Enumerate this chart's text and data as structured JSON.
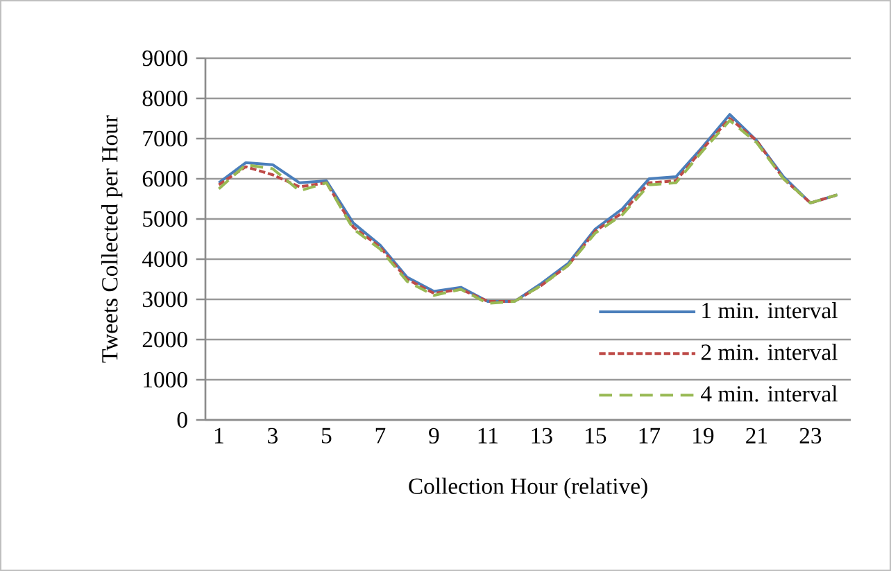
{
  "chart_data": {
    "type": "line",
    "xlabel": "Collection Hour (relative)",
    "ylabel": "Tweets Collected per Hour",
    "categories": [
      "1",
      null,
      "3",
      null,
      "5",
      null,
      "7",
      null,
      "9",
      null,
      "11",
      null,
      "13",
      null,
      "15",
      null,
      "17",
      null,
      "19",
      null,
      "21",
      null,
      "23",
      null
    ],
    "series": [
      {
        "name": "1 min. interval",
        "color": "#4a7ebb",
        "line_style": "solid",
        "values": [
          5900,
          6400,
          6350,
          5900,
          5950,
          4900,
          4350,
          3550,
          3200,
          3300,
          2950,
          2950,
          3400,
          3900,
          4750,
          5250,
          6000,
          6050,
          6800,
          7600,
          6950,
          6050,
          5400,
          5600
        ]
      },
      {
        "name": "2 min. interval",
        "color": "#be4b48",
        "line_style": "dashed",
        "values": [
          5850,
          6300,
          6100,
          5800,
          5900,
          4800,
          4300,
          3500,
          3150,
          3250,
          2950,
          2950,
          3350,
          3850,
          4700,
          5150,
          5900,
          5950,
          6750,
          7500,
          6950,
          6000,
          5400,
          5600
        ]
      },
      {
        "name": "4 min. interval",
        "color": "#98b954",
        "line_style": "dashed",
        "values": [
          5750,
          6350,
          6250,
          5700,
          5900,
          4750,
          4250,
          3450,
          3100,
          3250,
          2900,
          2950,
          3350,
          3850,
          4650,
          5100,
          5850,
          5900,
          6700,
          7450,
          6900,
          6000,
          5400,
          5600
        ]
      }
    ],
    "ylim": [
      0,
      9000
    ],
    "yticks": [
      0,
      1000,
      2000,
      3000,
      4000,
      5000,
      6000,
      7000,
      8000,
      9000
    ],
    "grid": "y",
    "legend": "right",
    "marker": "none"
  }
}
